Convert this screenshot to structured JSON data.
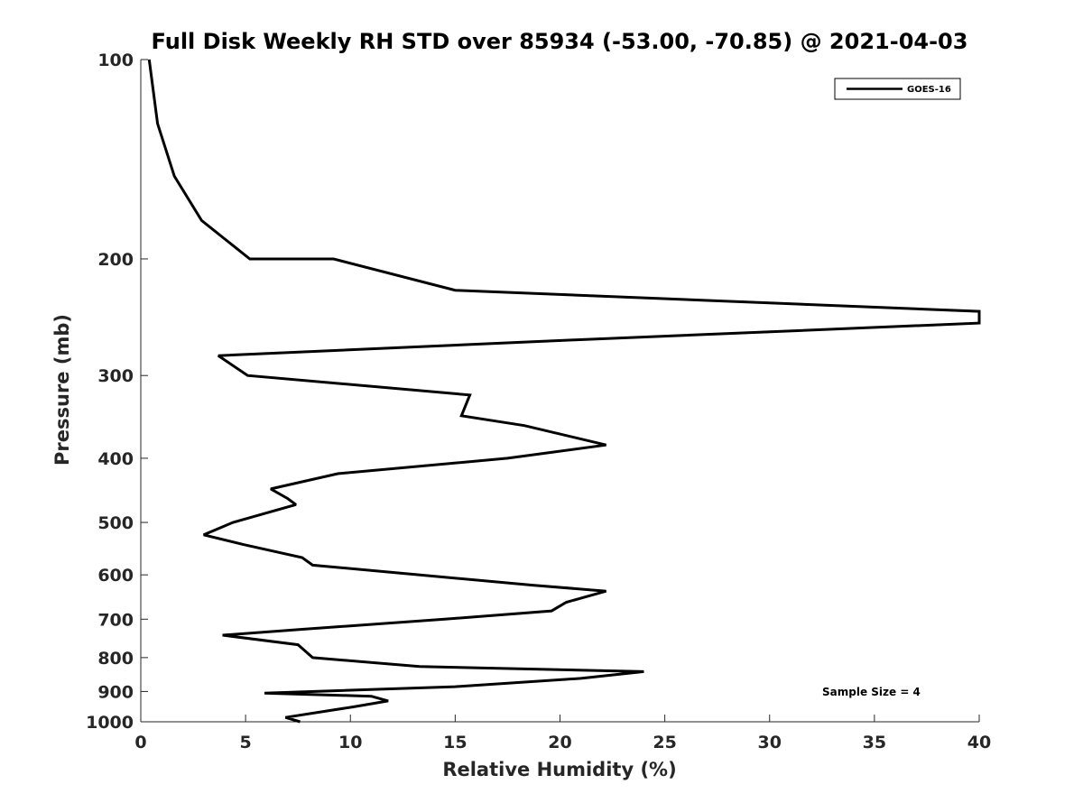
{
  "chart_data": {
    "type": "line",
    "title": "Full Disk Weekly RH STD over 85934 (-53.00, -70.85) @ 2021-04-03",
    "xlabel": "Relative Humidity (%)",
    "ylabel": "Pressure (mb)",
    "xlim": [
      0,
      40
    ],
    "ylim": [
      1000,
      100
    ],
    "yscale": "log",
    "yaxis_reversed": true,
    "grid": false,
    "xticks": [
      0,
      5,
      10,
      15,
      20,
      25,
      30,
      35,
      40
    ],
    "yticks": [
      100,
      200,
      300,
      400,
      500,
      600,
      700,
      800,
      900,
      1000
    ],
    "legend": {
      "placement": "top-right",
      "entries": [
        "GOES-16"
      ]
    },
    "annotations": [
      {
        "text": "Sample Size = 4",
        "placement": "bottom-right"
      }
    ],
    "series": [
      {
        "name": "GOES-16",
        "color": "#000000",
        "points": [
          [
            0.4,
            100
          ],
          [
            0.8,
            125
          ],
          [
            1.6,
            150
          ],
          [
            2.9,
            175
          ],
          [
            5.2,
            200
          ],
          [
            9.2,
            200
          ],
          [
            15.0,
            223
          ],
          [
            40.0,
            240
          ],
          [
            40.0,
            250
          ],
          [
            20.7,
            265
          ],
          [
            3.7,
            280
          ],
          [
            5.1,
            300
          ],
          [
            15.7,
            321
          ],
          [
            15.3,
            345
          ],
          [
            18.3,
            357
          ],
          [
            22.2,
            382
          ],
          [
            17.5,
            400
          ],
          [
            9.4,
            422
          ],
          [
            6.2,
            445
          ],
          [
            7.0,
            460
          ],
          [
            7.4,
            470
          ],
          [
            4.4,
            500
          ],
          [
            3.0,
            522
          ],
          [
            4.9,
            540
          ],
          [
            7.7,
            565
          ],
          [
            8.2,
            580
          ],
          [
            18.7,
            622
          ],
          [
            22.2,
            635
          ],
          [
            20.3,
            660
          ],
          [
            19.6,
            680
          ],
          [
            14.5,
            700
          ],
          [
            7.7,
            725
          ],
          [
            3.9,
            740
          ],
          [
            7.5,
            765
          ],
          [
            7.9,
            785
          ],
          [
            8.2,
            800
          ],
          [
            13.3,
            825
          ],
          [
            24.0,
            840
          ],
          [
            21.0,
            860
          ],
          [
            15.0,
            885
          ],
          [
            5.9,
            905
          ],
          [
            11.0,
            915
          ],
          [
            11.8,
            930
          ],
          [
            10.1,
            950
          ],
          [
            6.9,
            985
          ],
          [
            7.6,
            1000
          ]
        ]
      }
    ]
  }
}
